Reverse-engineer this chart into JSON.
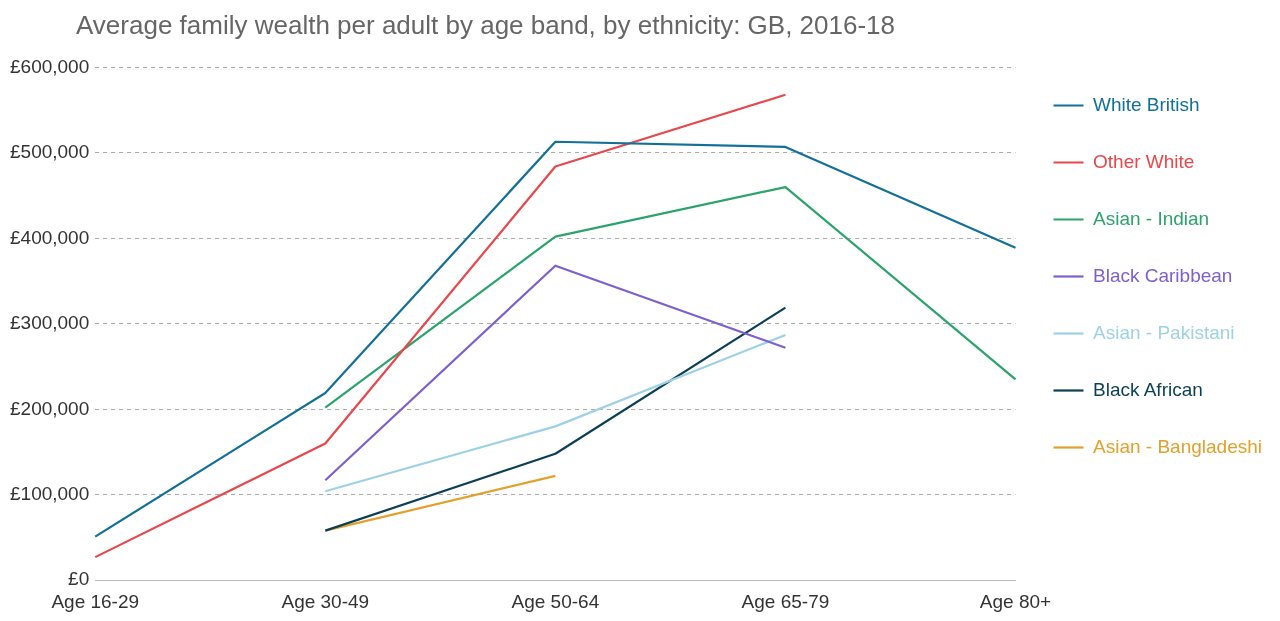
{
  "chart_data": {
    "type": "line",
    "title": "Average family wealth per adult by age band, by ethnicity: GB, 2016-18",
    "categories": [
      "Age 16-29",
      "Age 30-49",
      "Age 50-64",
      "Age 65-79",
      "Age 80+"
    ],
    "series": [
      {
        "name": "White British",
        "color": "#137099",
        "values": [
          51000,
          219000,
          513000,
          507000,
          389000
        ]
      },
      {
        "name": "Other White",
        "color": "#e8474b",
        "values": [
          27000,
          160000,
          484000,
          568000,
          null
        ]
      },
      {
        "name": "Asian - Indian",
        "color": "#2ba36d",
        "values": [
          null,
          202000,
          402000,
          460000,
          235000
        ]
      },
      {
        "name": "Black Caribbean",
        "color": "#7d5fcf",
        "values": [
          null,
          117000,
          368000,
          272000,
          null
        ]
      },
      {
        "name": "Asian - Pakistani",
        "color": "#9fd1e6",
        "values": [
          null,
          104000,
          180000,
          287000,
          null
        ]
      },
      {
        "name": "Black African",
        "color": "#0b3f55",
        "values": [
          null,
          58000,
          148000,
          319000,
          null
        ]
      },
      {
        "name": "Asian - Bangladeshi",
        "color": "#e3a02b",
        "values": [
          null,
          58000,
          122000,
          null,
          null
        ]
      }
    ],
    "ylim": [
      0,
      600000
    ],
    "yticks": [
      {
        "value": 0,
        "label": "£0"
      },
      {
        "value": 100000,
        "label": "£100,000"
      },
      {
        "value": 200000,
        "label": "£200,000"
      },
      {
        "value": 300000,
        "label": "£300,000"
      },
      {
        "value": 400000,
        "label": "£400,000"
      },
      {
        "value": 500000,
        "label": "£500,000"
      },
      {
        "value": 600000,
        "label": "£600,000"
      }
    ],
    "grid": "y",
    "legend": "right",
    "marker": "none",
    "line_style": "solid"
  }
}
